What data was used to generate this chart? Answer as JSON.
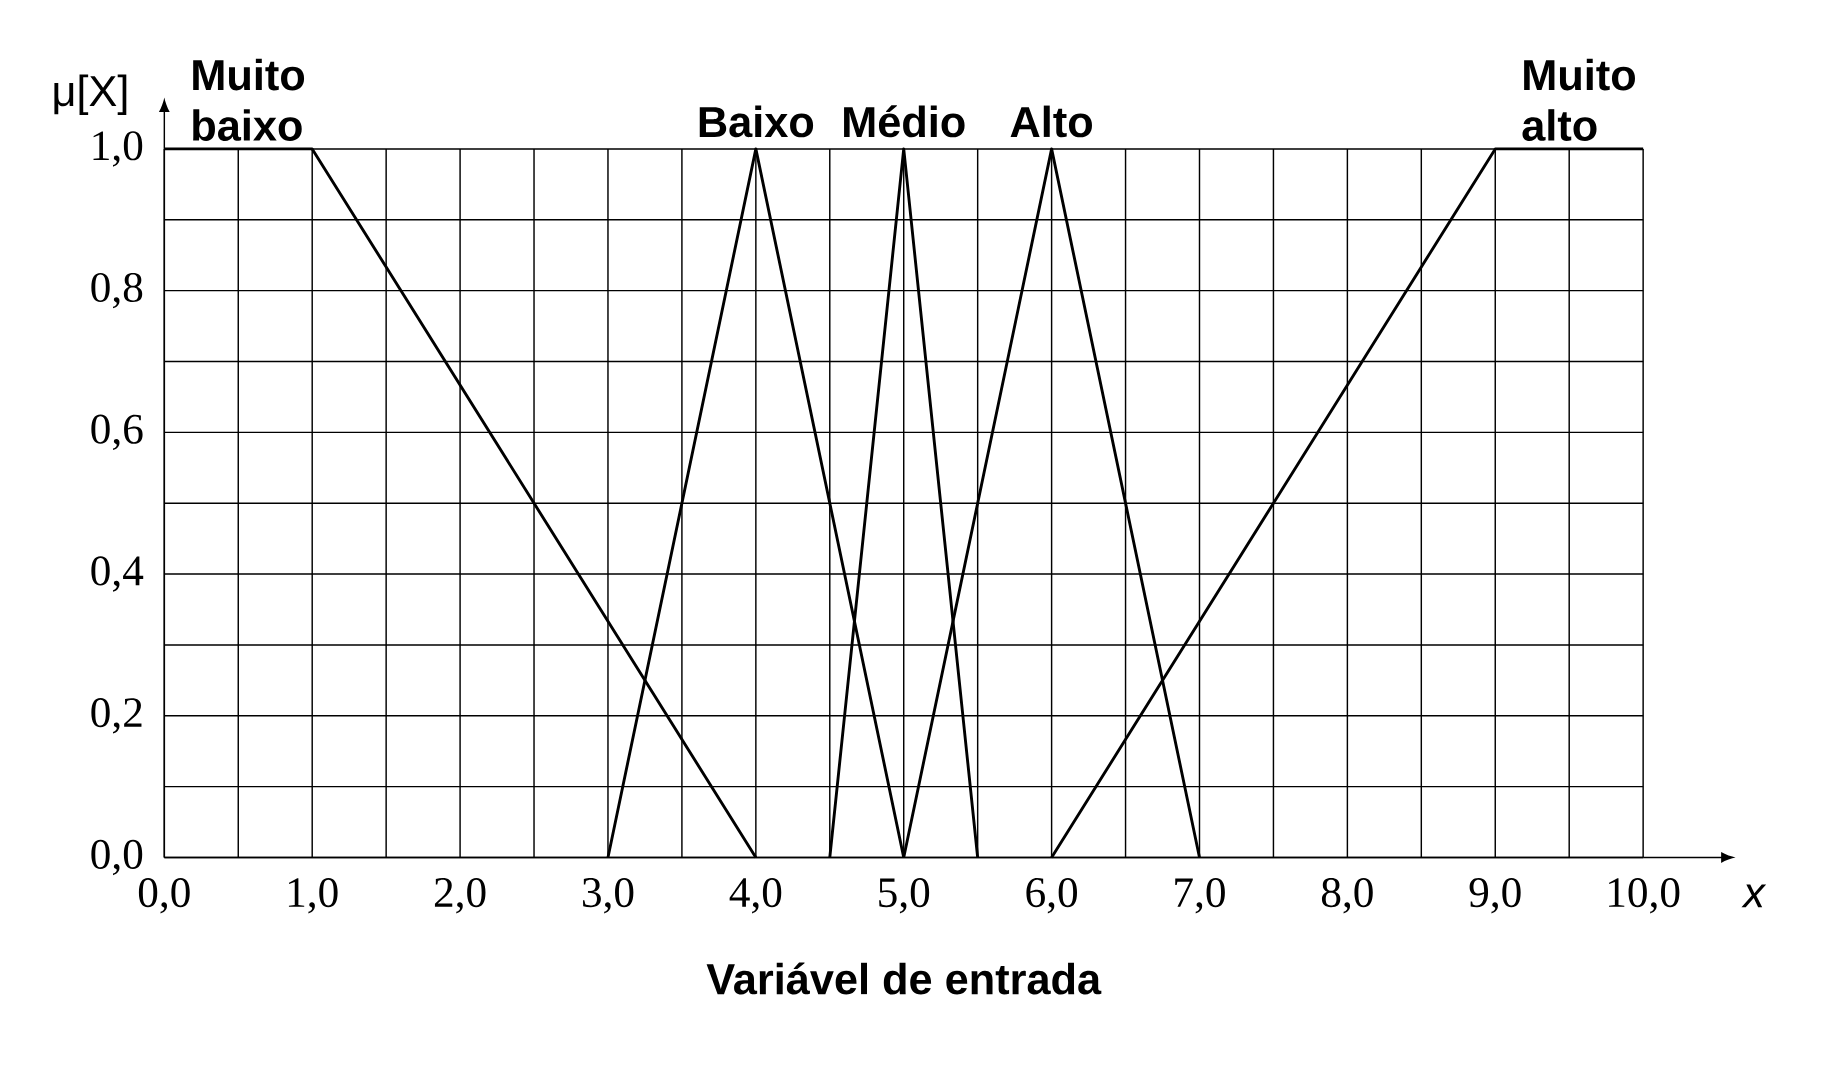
{
  "chart_data": {
    "type": "line",
    "xlabel": "Variável de entrada",
    "ylabel": "μ[X]",
    "annotations": [
      "x"
    ],
    "series": [
      {
        "name": "Muito baixo",
        "color": "#000000",
        "x": [
          0,
          1,
          4
        ],
        "values": [
          1,
          1,
          0
        ]
      },
      {
        "name": "Baixo",
        "color": "#000000",
        "x": [
          3,
          4,
          5
        ],
        "values": [
          0,
          1,
          0
        ]
      },
      {
        "name": "Médio",
        "color": "#000000",
        "x": [
          4.5,
          5,
          5.5
        ],
        "values": [
          0,
          1,
          0
        ]
      },
      {
        "name": "Alto",
        "color": "#000000",
        "x": [
          5,
          6,
          7
        ],
        "values": [
          0,
          1,
          0
        ]
      },
      {
        "name": "Muito alto",
        "color": "#000000",
        "x": [
          6,
          9,
          10
        ],
        "values": [
          0,
          1,
          1
        ]
      }
    ],
    "xlim": [
      0,
      10
    ],
    "ylim": [
      0,
      1
    ],
    "xticks": [
      {
        "value": 0,
        "label": "0,0"
      },
      {
        "value": 0.5,
        "label": null
      },
      {
        "value": 1,
        "label": "1,0"
      },
      {
        "value": 1.5,
        "label": null
      },
      {
        "value": 2,
        "label": "2,0"
      },
      {
        "value": 2.5,
        "label": null
      },
      {
        "value": 3,
        "label": "3,0"
      },
      {
        "value": 3.5,
        "label": null
      },
      {
        "value": 4,
        "label": "4,0"
      },
      {
        "value": 4.5,
        "label": null
      },
      {
        "value": 5,
        "label": "5,0"
      },
      {
        "value": 5.5,
        "label": null
      },
      {
        "value": 6,
        "label": "6,0"
      },
      {
        "value": 6.5,
        "label": null
      },
      {
        "value": 7,
        "label": "7,0"
      },
      {
        "value": 7.5,
        "label": null
      },
      {
        "value": 8,
        "label": "8,0"
      },
      {
        "value": 8.5,
        "label": null
      },
      {
        "value": 9,
        "label": "9,0"
      },
      {
        "value": 9.5,
        "label": null
      },
      {
        "value": 10,
        "label": "10,0"
      }
    ],
    "yticks": [
      {
        "value": 0,
        "label": "0,0"
      },
      {
        "value": 0.1,
        "label": null
      },
      {
        "value": 0.2,
        "label": "0,2"
      },
      {
        "value": 0.3,
        "label": null
      },
      {
        "value": 0.4,
        "label": "0,4"
      },
      {
        "value": 0.5,
        "label": null
      },
      {
        "value": 0.6,
        "label": "0,6"
      },
      {
        "value": 0.7,
        "label": null
      },
      {
        "value": 0.8,
        "label": "0,8"
      },
      {
        "value": 0.9,
        "label": null
      },
      {
        "value": 1,
        "label": "1,0"
      }
    ],
    "grid": true,
    "marker": "none",
    "line_style": "solid"
  }
}
